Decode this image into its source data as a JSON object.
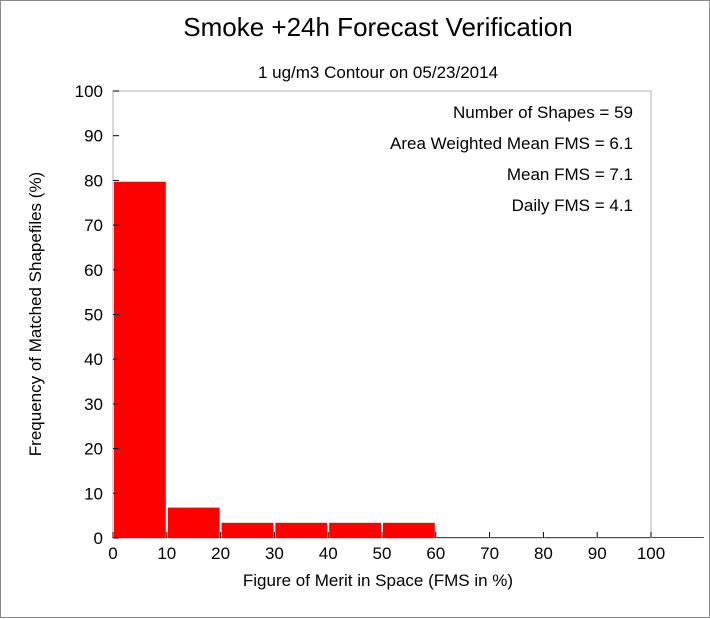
{
  "chart_data": {
    "type": "bar",
    "title": "Smoke +24h Forecast Verification",
    "subtitle": "1 ug/m3 Contour on 05/23/2014",
    "xlabel": "Figure of Merit in Space (FMS in %)",
    "ylabel": "Frequency of Matched Shapefiles (%)",
    "xlim": [
      0,
      100
    ],
    "ylim": [
      0,
      100
    ],
    "xticks": [
      "0",
      "10",
      "20",
      "30",
      "40",
      "50",
      "60",
      "70",
      "80",
      "90",
      "100"
    ],
    "yticks": [
      "0",
      "10",
      "20",
      "30",
      "40",
      "50",
      "60",
      "70",
      "80",
      "90",
      "100"
    ],
    "bin_width": 10,
    "bins": [
      0,
      10,
      20,
      30,
      40,
      50,
      60,
      70,
      80,
      90,
      100
    ],
    "values": [
      79.7,
      6.8,
      3.4,
      3.4,
      3.4,
      3.4,
      0,
      0,
      0,
      0,
      0
    ],
    "bar_color": "#ff0000",
    "grid": false,
    "annotations": [
      "Number of Shapes = 59",
      "Area Weighted Mean FMS = 6.1",
      "Mean FMS = 7.1",
      "Daily FMS = 4.1"
    ]
  }
}
